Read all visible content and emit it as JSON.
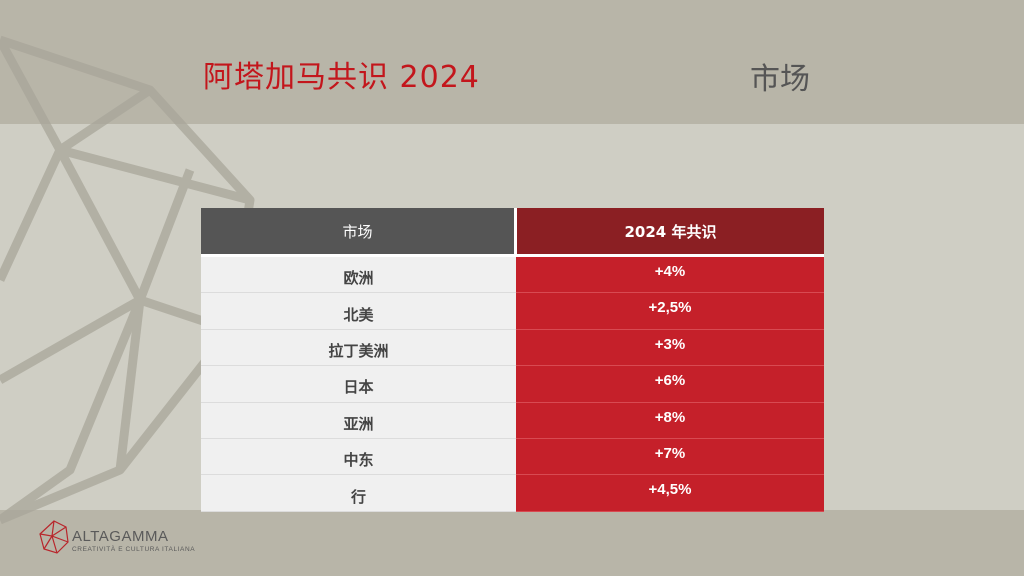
{
  "slide": {
    "title": "阿塔加马共识 2024",
    "section_label": "市场"
  },
  "table": {
    "header_left": "市场",
    "header_right": "2024 年共识",
    "rows": [
      {
        "market": "欧洲",
        "value": "+4%"
      },
      {
        "market": "北美",
        "value": "+2,5%"
      },
      {
        "market": "拉丁美洲",
        "value": "+3%"
      },
      {
        "market": "日本",
        "value": "+6%"
      },
      {
        "market": "亚洲",
        "value": "+8%"
      },
      {
        "market": "中东",
        "value": "+7%"
      },
      {
        "market": "行",
        "value": "+4,5%"
      }
    ]
  },
  "logo": {
    "name": "ALTAGAMMA",
    "tagline": "CREATIVITÀ E CULTURA ITALIANA",
    "icon": "polyhedron-logo-icon"
  },
  "colors": {
    "title_red": "#c3161c",
    "header_dark_red": "#8b1f23",
    "value_red": "#c5202a",
    "header_gray": "#555555"
  }
}
